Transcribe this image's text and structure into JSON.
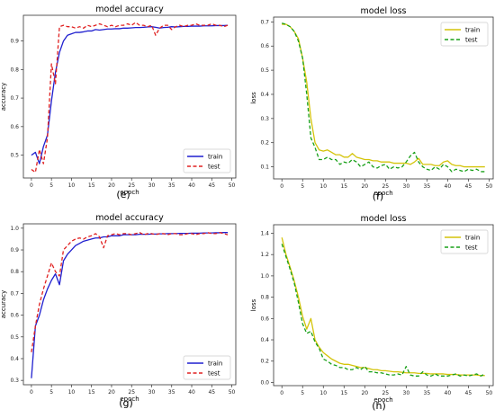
{
  "chart_data": [
    {
      "type": "line",
      "panel_label": "(e)",
      "title": "model accuracy",
      "xlabel": "epoch",
      "ylabel": "accuracy",
      "xlim": [
        -2,
        51
      ],
      "ylim": [
        0.42,
        0.99
      ],
      "xticks": [
        0,
        5,
        10,
        15,
        20,
        25,
        30,
        35,
        40,
        45,
        50
      ],
      "yticks": [
        0.5,
        0.6,
        0.7,
        0.8,
        0.9
      ],
      "ytick_labels": [
        "0.5",
        "0.6",
        "0.7",
        "0.8",
        "0.9"
      ],
      "legend_position": "bottom-right",
      "grid": false,
      "x": [
        0,
        1,
        2,
        3,
        4,
        5,
        6,
        7,
        8,
        9,
        10,
        11,
        12,
        13,
        14,
        15,
        16,
        17,
        18,
        19,
        20,
        21,
        22,
        23,
        24,
        25,
        26,
        27,
        28,
        29,
        30,
        31,
        32,
        33,
        34,
        35,
        36,
        37,
        38,
        39,
        40,
        41,
        42,
        43,
        44,
        45,
        46,
        47,
        48,
        49
      ],
      "series": [
        {
          "name": "train",
          "color": "#1f1fcf",
          "dash": "solid",
          "values": [
            0.5,
            0.51,
            0.47,
            0.53,
            0.57,
            0.69,
            0.79,
            0.86,
            0.9,
            0.92,
            0.925,
            0.93,
            0.93,
            0.932,
            0.935,
            0.935,
            0.94,
            0.938,
            0.94,
            0.942,
            0.942,
            0.943,
            0.943,
            0.945,
            0.945,
            0.946,
            0.947,
            0.947,
            0.948,
            0.949,
            0.95,
            0.948,
            0.945,
            0.947,
            0.948,
            0.95,
            0.949,
            0.95,
            0.951,
            0.951,
            0.952,
            0.952,
            0.952,
            0.953,
            0.953,
            0.953,
            0.954,
            0.954,
            0.954,
            0.955
          ]
        },
        {
          "name": "test",
          "color": "#e02020",
          "dash": "dashed",
          "values": [
            0.45,
            0.44,
            0.52,
            0.47,
            0.56,
            0.82,
            0.75,
            0.95,
            0.955,
            0.95,
            0.95,
            0.945,
            0.95,
            0.945,
            0.955,
            0.95,
            0.955,
            0.96,
            0.955,
            0.95,
            0.955,
            0.95,
            0.955,
            0.955,
            0.96,
            0.955,
            0.965,
            0.955,
            0.955,
            0.95,
            0.955,
            0.92,
            0.945,
            0.955,
            0.955,
            0.94,
            0.95,
            0.955,
            0.95,
            0.955,
            0.955,
            0.96,
            0.955,
            0.955,
            0.955,
            0.96,
            0.955,
            0.955,
            0.95,
            0.955
          ]
        }
      ]
    },
    {
      "type": "line",
      "panel_label": "(f)",
      "title": "model loss",
      "xlabel": "epoch",
      "ylabel": "loss",
      "xlim": [
        -2,
        51
      ],
      "ylim": [
        0.05,
        0.72
      ],
      "xticks": [
        0,
        5,
        10,
        15,
        20,
        25,
        30,
        35,
        40,
        45,
        50
      ],
      "yticks": [
        0.1,
        0.2,
        0.3,
        0.4,
        0.5,
        0.6,
        0.7
      ],
      "ytick_labels": [
        "0.1",
        "0.2",
        "0.3",
        "0.4",
        "0.5",
        "0.6",
        "0.7"
      ],
      "legend_position": "top-right",
      "grid": false,
      "x": [
        0,
        1,
        2,
        3,
        4,
        5,
        6,
        7,
        8,
        9,
        10,
        11,
        12,
        13,
        14,
        15,
        16,
        17,
        18,
        19,
        20,
        21,
        22,
        23,
        24,
        25,
        26,
        27,
        28,
        29,
        30,
        31,
        32,
        33,
        34,
        35,
        36,
        37,
        38,
        39,
        40,
        41,
        42,
        43,
        44,
        45,
        46,
        47,
        48,
        49
      ],
      "series": [
        {
          "name": "train",
          "color": "#d4c40a",
          "dash": "solid",
          "values": [
            0.69,
            0.69,
            0.68,
            0.66,
            0.63,
            0.55,
            0.45,
            0.3,
            0.2,
            0.17,
            0.165,
            0.17,
            0.16,
            0.15,
            0.15,
            0.14,
            0.14,
            0.155,
            0.14,
            0.135,
            0.13,
            0.13,
            0.125,
            0.125,
            0.12,
            0.12,
            0.12,
            0.115,
            0.115,
            0.115,
            0.115,
            0.11,
            0.12,
            0.135,
            0.11,
            0.11,
            0.11,
            0.105,
            0.105,
            0.12,
            0.125,
            0.11,
            0.105,
            0.105,
            0.1,
            0.1,
            0.1,
            0.1,
            0.1,
            0.1
          ]
        },
        {
          "name": "test",
          "color": "#18a018",
          "dash": "dashed",
          "values": [
            0.695,
            0.69,
            0.68,
            0.66,
            0.62,
            0.55,
            0.4,
            0.22,
            0.18,
            0.13,
            0.13,
            0.14,
            0.13,
            0.13,
            0.11,
            0.12,
            0.115,
            0.13,
            0.12,
            0.1,
            0.11,
            0.12,
            0.1,
            0.095,
            0.105,
            0.11,
            0.09,
            0.1,
            0.095,
            0.1,
            0.12,
            0.145,
            0.16,
            0.12,
            0.1,
            0.09,
            0.085,
            0.1,
            0.09,
            0.11,
            0.1,
            0.08,
            0.09,
            0.085,
            0.08,
            0.09,
            0.085,
            0.09,
            0.08,
            0.08
          ]
        }
      ]
    },
    {
      "type": "line",
      "panel_label": "(g)",
      "title": "model accuracy",
      "xlabel": "epoch",
      "ylabel": "accuracy",
      "xlim": [
        -2,
        51
      ],
      "ylim": [
        0.28,
        1.02
      ],
      "xticks": [
        0,
        5,
        10,
        15,
        20,
        25,
        30,
        35,
        40,
        45,
        50
      ],
      "yticks": [
        0.3,
        0.4,
        0.5,
        0.6,
        0.7,
        0.8,
        0.9,
        1.0
      ],
      "ytick_labels": [
        "0.3",
        "0.4",
        "0.5",
        "0.6",
        "0.7",
        "0.8",
        "0.9",
        "1.0"
      ],
      "legend_position": "bottom-right",
      "grid": false,
      "x": [
        0,
        1,
        2,
        3,
        4,
        5,
        6,
        7,
        8,
        9,
        10,
        11,
        12,
        13,
        14,
        15,
        16,
        17,
        18,
        19,
        20,
        21,
        22,
        23,
        24,
        25,
        26,
        27,
        28,
        29,
        30,
        31,
        32,
        33,
        34,
        35,
        36,
        37,
        38,
        39,
        40,
        41,
        42,
        43,
        44,
        45,
        46,
        47,
        48,
        49
      ],
      "series": [
        {
          "name": "train",
          "color": "#1f1fcf",
          "dash": "solid",
          "values": [
            0.31,
            0.55,
            0.6,
            0.67,
            0.72,
            0.76,
            0.79,
            0.74,
            0.85,
            0.88,
            0.9,
            0.92,
            0.93,
            0.94,
            0.945,
            0.95,
            0.955,
            0.955,
            0.96,
            0.96,
            0.965,
            0.965,
            0.965,
            0.97,
            0.97,
            0.97,
            0.97,
            0.972,
            0.972,
            0.972,
            0.973,
            0.973,
            0.974,
            0.974,
            0.975,
            0.975,
            0.975,
            0.976,
            0.976,
            0.976,
            0.977,
            0.977,
            0.977,
            0.978,
            0.978,
            0.978,
            0.979,
            0.979,
            0.98,
            0.98
          ]
        },
        {
          "name": "test",
          "color": "#e02020",
          "dash": "dashed",
          "values": [
            0.43,
            0.55,
            0.65,
            0.72,
            0.78,
            0.84,
            0.8,
            0.78,
            0.9,
            0.92,
            0.94,
            0.95,
            0.955,
            0.95,
            0.96,
            0.965,
            0.975,
            0.96,
            0.91,
            0.965,
            0.97,
            0.975,
            0.97,
            0.975,
            0.975,
            0.97,
            0.975,
            0.98,
            0.97,
            0.975,
            0.975,
            0.97,
            0.975,
            0.975,
            0.97,
            0.975,
            0.975,
            0.97,
            0.97,
            0.975,
            0.975,
            0.97,
            0.975,
            0.975,
            0.98,
            0.975,
            0.975,
            0.98,
            0.975,
            0.97
          ]
        }
      ]
    },
    {
      "type": "line",
      "panel_label": "(h)",
      "title": "model loss",
      "xlabel": "epoch",
      "ylabel": "loss",
      "xlim": [
        -2,
        51
      ],
      "ylim": [
        -0.03,
        1.48
      ],
      "xticks": [
        0,
        5,
        10,
        15,
        20,
        25,
        30,
        35,
        40,
        45,
        50
      ],
      "yticks": [
        0.0,
        0.2,
        0.4,
        0.6,
        0.8,
        1.0,
        1.2,
        1.4
      ],
      "ytick_labels": [
        "0.0",
        "0.2",
        "0.4",
        "0.6",
        "0.8",
        "1.0",
        "1.2",
        "1.4"
      ],
      "legend_position": "top-right",
      "grid": false,
      "x": [
        0,
        1,
        2,
        3,
        4,
        5,
        6,
        7,
        8,
        9,
        10,
        11,
        12,
        13,
        14,
        15,
        16,
        17,
        18,
        19,
        20,
        21,
        22,
        23,
        24,
        25,
        26,
        27,
        28,
        29,
        30,
        31,
        32,
        33,
        34,
        35,
        36,
        37,
        38,
        39,
        40,
        41,
        42,
        43,
        44,
        45,
        46,
        47,
        48,
        49
      ],
      "series": [
        {
          "name": "train",
          "color": "#d4c40a",
          "dash": "solid",
          "values": [
            1.36,
            1.2,
            1.08,
            0.95,
            0.8,
            0.62,
            0.5,
            0.6,
            0.4,
            0.33,
            0.28,
            0.25,
            0.22,
            0.2,
            0.18,
            0.17,
            0.17,
            0.16,
            0.15,
            0.14,
            0.14,
            0.13,
            0.12,
            0.12,
            0.11,
            0.11,
            0.105,
            0.1,
            0.1,
            0.095,
            0.09,
            0.09,
            0.09,
            0.085,
            0.085,
            0.085,
            0.08,
            0.08,
            0.08,
            0.08,
            0.075,
            0.075,
            0.075,
            0.07,
            0.07,
            0.07,
            0.07,
            0.07,
            0.065,
            0.065
          ]
        },
        {
          "name": "test",
          "color": "#18a018",
          "dash": "dashed",
          "values": [
            1.3,
            1.18,
            1.06,
            0.93,
            0.75,
            0.55,
            0.46,
            0.48,
            0.38,
            0.32,
            0.22,
            0.2,
            0.17,
            0.16,
            0.14,
            0.14,
            0.12,
            0.12,
            0.14,
            0.12,
            0.15,
            0.1,
            0.1,
            0.09,
            0.09,
            0.08,
            0.07,
            0.07,
            0.08,
            0.07,
            0.15,
            0.07,
            0.06,
            0.06,
            0.1,
            0.07,
            0.06,
            0.08,
            0.06,
            0.06,
            0.06,
            0.07,
            0.08,
            0.06,
            0.07,
            0.06,
            0.07,
            0.08,
            0.06,
            0.08
          ]
        }
      ]
    }
  ]
}
